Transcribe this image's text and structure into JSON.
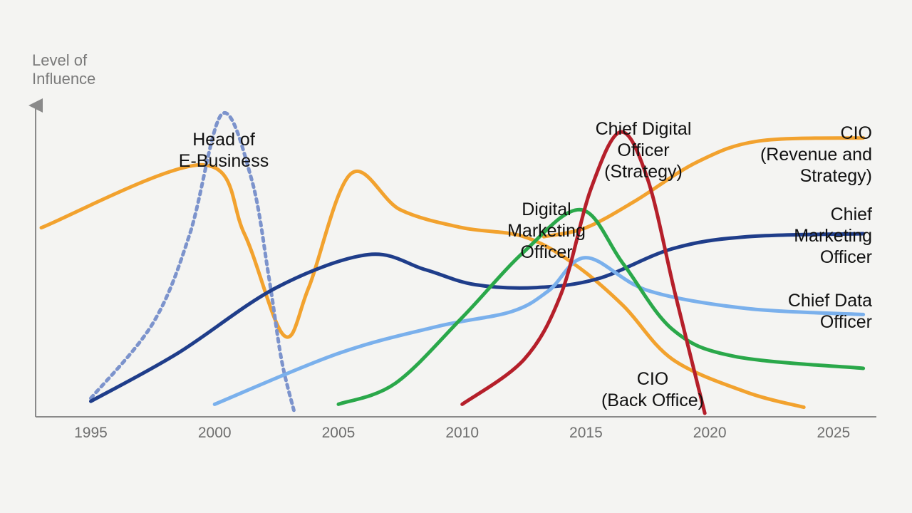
{
  "chart_data": {
    "type": "line",
    "title": "",
    "ylabel": [
      "Level of",
      "Influence"
    ],
    "xlabel": "",
    "xlim": [
      1993,
      2026.5
    ],
    "ylim": [
      0,
      100
    ],
    "x_ticks": [
      1995,
      2000,
      2005,
      2010,
      2015,
      2020,
      2025
    ],
    "grid": false,
    "series": [
      {
        "key": "cio_back_office",
        "label_lines": [
          "CIO",
          "(Back Office)"
        ],
        "color": "#f2a22e",
        "dashed": false,
        "points": [
          [
            1993,
            62
          ],
          [
            1999.5,
            83
          ],
          [
            2001.2,
            60
          ],
          [
            2002.8,
            26
          ],
          [
            2003.8,
            42
          ],
          [
            2005.5,
            80
          ],
          [
            2007.5,
            68
          ],
          [
            2010,
            62
          ],
          [
            2012.5,
            59
          ],
          [
            2014.5,
            50
          ],
          [
            2016.5,
            36
          ],
          [
            2018.5,
            18
          ],
          [
            2021.5,
            7
          ],
          [
            2023.8,
            2
          ]
        ]
      },
      {
        "key": "cio_revenue_strategy",
        "label_lines": [
          "CIO",
          "(Revenue and",
          "Strategy)"
        ],
        "color": "#f2a22e",
        "dashed": false,
        "points": [
          [
            2013.3,
            59
          ],
          [
            2015,
            62
          ],
          [
            2017,
            71
          ],
          [
            2019.5,
            84
          ],
          [
            2022,
            91
          ],
          [
            2026.2,
            92
          ]
        ]
      },
      {
        "key": "head_of_e_business",
        "label_lines": [
          "Head of",
          "E-Business"
        ],
        "color": "#7c93cc",
        "dashed": true,
        "points": [
          [
            1995,
            5
          ],
          [
            1997.5,
            30
          ],
          [
            1999,
            60
          ],
          [
            2000.3,
            100
          ],
          [
            2001.5,
            78
          ],
          [
            2002.2,
            45
          ],
          [
            2002.7,
            18
          ],
          [
            2003.2,
            1
          ]
        ]
      },
      {
        "key": "chief_marketing_officer",
        "label_lines": [
          "Chief",
          "Marketing",
          "Officer"
        ],
        "color": "#1f3d8a",
        "dashed": false,
        "points": [
          [
            1995,
            4
          ],
          [
            1998.5,
            20
          ],
          [
            2002.5,
            42
          ],
          [
            2006.2,
            53
          ],
          [
            2008.5,
            48
          ],
          [
            2010.5,
            43
          ],
          [
            2013,
            42
          ],
          [
            2015.5,
            45
          ],
          [
            2018.5,
            55
          ],
          [
            2021.5,
            59
          ],
          [
            2026.2,
            60
          ]
        ]
      },
      {
        "key": "chief_data_officer",
        "label_lines": [
          "Chief Data",
          "Officer"
        ],
        "color": "#7ab0ec",
        "dashed": false,
        "points": [
          [
            2000,
            3
          ],
          [
            2005,
            20
          ],
          [
            2009,
            29
          ],
          [
            2012,
            34
          ],
          [
            2013.5,
            41
          ],
          [
            2015,
            52
          ],
          [
            2017.5,
            41
          ],
          [
            2021.5,
            35
          ],
          [
            2026.2,
            33
          ]
        ]
      },
      {
        "key": "digital_marketing_officer",
        "label_lines": [
          "Digital",
          "Marketing",
          "Officer"
        ],
        "color": "#2aa84a",
        "dashed": false,
        "points": [
          [
            2005,
            3
          ],
          [
            2007.3,
            10
          ],
          [
            2010,
            32
          ],
          [
            2012.5,
            54
          ],
          [
            2014.8,
            68
          ],
          [
            2016.5,
            50
          ],
          [
            2018.5,
            28
          ],
          [
            2021,
            19
          ],
          [
            2026.2,
            15
          ]
        ]
      },
      {
        "key": "chief_digital_officer",
        "label_lines": [
          "Chief Digital",
          "Officer",
          "(Strategy)"
        ],
        "color": "#b51f2a",
        "dashed": false,
        "points": [
          [
            2010,
            3
          ],
          [
            2012.5,
            18
          ],
          [
            2014,
            40
          ],
          [
            2015.2,
            75
          ],
          [
            2016.4,
            94
          ],
          [
            2017.5,
            78
          ],
          [
            2018.6,
            40
          ],
          [
            2019.8,
            0
          ]
        ]
      }
    ]
  }
}
